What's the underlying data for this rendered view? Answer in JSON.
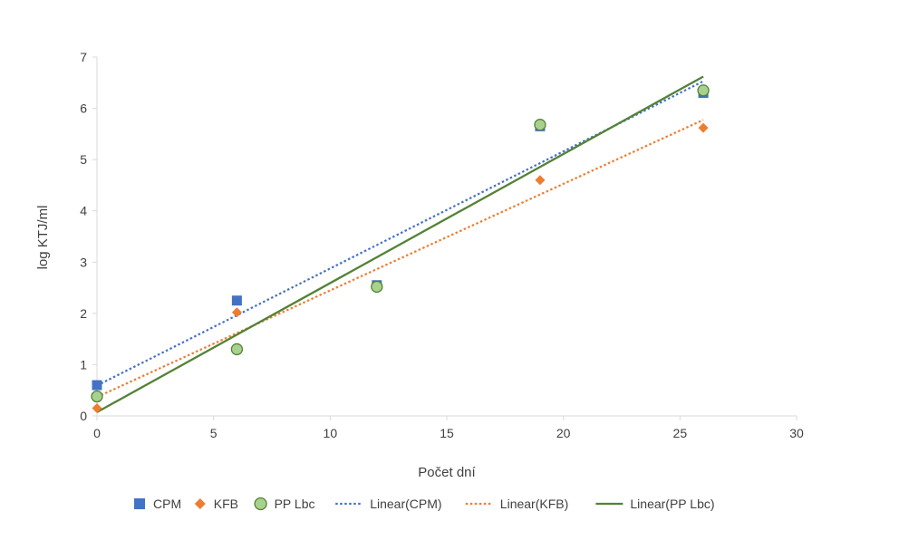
{
  "chart_data": {
    "type": "scatter",
    "title": "",
    "xlabel": "Počet dní",
    "ylabel": "log KTJ/ml",
    "xlim": [
      0,
      30
    ],
    "ylim": [
      0,
      7
    ],
    "x_ticks": [
      0,
      5,
      10,
      15,
      20,
      25,
      30
    ],
    "y_ticks": [
      0,
      1,
      2,
      3,
      4,
      5,
      6,
      7
    ],
    "grid": false,
    "legend_position": "bottom",
    "series": [
      {
        "name": "CPM",
        "marker": "square",
        "color": "#4472C4",
        "points": [
          {
            "x": 0,
            "y": 0.6
          },
          {
            "x": 6,
            "y": 2.25
          },
          {
            "x": 12,
            "y": 2.55
          },
          {
            "x": 19,
            "y": 5.65
          },
          {
            "x": 26,
            "y": 6.3
          }
        ]
      },
      {
        "name": "KFB",
        "marker": "diamond",
        "color": "#ED7D31",
        "points": [
          {
            "x": 0,
            "y": 0.15
          },
          {
            "x": 6,
            "y": 2.02
          },
          {
            "x": 12,
            "y": 2.55
          },
          {
            "x": 19,
            "y": 4.6
          },
          {
            "x": 26,
            "y": 5.62
          }
        ]
      },
      {
        "name": "PP Lbc",
        "marker": "circle",
        "color": "#A9D18E",
        "stroke": "#538135",
        "points": [
          {
            "x": 0,
            "y": 0.38
          },
          {
            "x": 6,
            "y": 1.3
          },
          {
            "x": 12,
            "y": 2.52
          },
          {
            "x": 19,
            "y": 5.68
          },
          {
            "x": 26,
            "y": 6.35
          }
        ]
      }
    ],
    "trendlines": [
      {
        "name": "Linear(CPM)",
        "series": "CPM",
        "style": "dotted",
        "color": "#4472C4",
        "x_range": [
          0,
          26
        ]
      },
      {
        "name": "Linear(KFB)",
        "series": "KFB",
        "style": "dotted",
        "color": "#ED7D31",
        "x_range": [
          0,
          26
        ]
      },
      {
        "name": "Linear(PP Lbc)",
        "series": "PP Lbc",
        "style": "solid",
        "color": "#548235",
        "x_range": [
          0,
          26
        ]
      }
    ]
  }
}
